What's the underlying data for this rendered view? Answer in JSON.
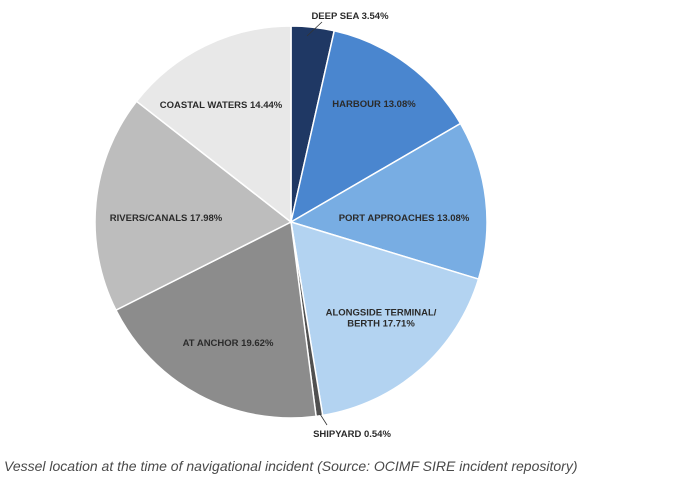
{
  "caption": "Vessel location at the time of navigational incident (Source: OCIMF SIRE incident repository)",
  "chart_data": {
    "type": "pie",
    "title": "",
    "start_angle_deg": 0,
    "direction": "clockwise",
    "slices": [
      {
        "label": "DEEP SEA 3.54%",
        "value": 3.54,
        "color": "#1f3864",
        "label_style": "dark",
        "leader": true
      },
      {
        "label": "HARBOUR 13.08%",
        "value": 13.08,
        "color": "#4a86cf",
        "label_style": "dark"
      },
      {
        "label": "PORT APPROACHES 13.08%",
        "value": 13.08,
        "color": "#78ade3",
        "label_style": "dark"
      },
      {
        "label": "ALONGSIDE TERMINAL/\nBERTH 17.71%",
        "value": 17.71,
        "color": "#b3d3f1",
        "label_style": "dark"
      },
      {
        "label": "SHIPYARD 0.54%",
        "value": 0.54,
        "color": "#505050",
        "label_style": "dark",
        "leader": true
      },
      {
        "label": "AT ANCHOR 19.62%",
        "value": 19.62,
        "color": "#8c8c8c",
        "label_style": "dark"
      },
      {
        "label": "RIVERS/CANALS 17.98%",
        "value": 17.98,
        "color": "#bdbdbd",
        "label_style": "dark"
      },
      {
        "label": "COASTAL WATERS 14.44%",
        "value": 14.44,
        "color": "#e8e8e8",
        "label_style": "dark"
      }
    ]
  }
}
